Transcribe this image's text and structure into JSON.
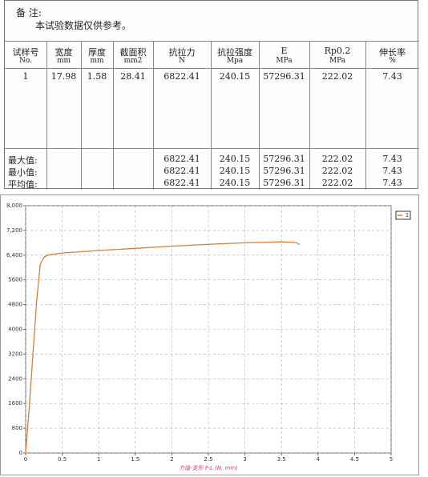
{
  "remark": {
    "label": "备 注:",
    "text": "本试验数据仅供参考。"
  },
  "table": {
    "columns": [
      {
        "name": "试样号",
        "unit": "No."
      },
      {
        "name": "宽度",
        "unit": "mm"
      },
      {
        "name": "厚度",
        "unit": "mm"
      },
      {
        "name": "截面积",
        "unit": "mm2"
      },
      {
        "name": "抗拉力",
        "unit": "N"
      },
      {
        "name": "抗拉强度",
        "unit": "Mpa"
      },
      {
        "name": "E",
        "unit": "MPa"
      },
      {
        "name": "Rp0.2",
        "unit": "MPa"
      },
      {
        "name": "伸长率",
        "unit": "%"
      }
    ],
    "rows": [
      [
        1,
        17.98,
        1.58,
        28.41,
        6822.41,
        240.15,
        57296.31,
        222.02,
        7.43
      ]
    ],
    "stats": [
      {
        "label": "最大值:",
        "values": [
          6822.41,
          240.15,
          57296.31,
          222.02,
          7.43
        ]
      },
      {
        "label": "最小值:",
        "values": [
          6822.41,
          240.15,
          57296.31,
          222.02,
          7.43
        ]
      },
      {
        "label": "平均值:",
        "values": [
          6822.41,
          240.15,
          57296.31,
          222.02,
          7.43
        ]
      }
    ]
  },
  "chart_data": {
    "type": "line",
    "x_label": "力值-变形 F-L  (N, mm)",
    "x": [
      0,
      0.05,
      0.1,
      0.15,
      0.2,
      0.25,
      0.3,
      0.5,
      1,
      1.5,
      2,
      2.5,
      3,
      3.5,
      3.7,
      3.75
    ],
    "series": [
      {
        "name": "1",
        "color": "#d08040",
        "values": [
          0,
          1500,
          3200,
          4900,
          6100,
          6330,
          6400,
          6470,
          6550,
          6620,
          6690,
          6750,
          6800,
          6830,
          6810,
          6740
        ]
      }
    ],
    "xlim": [
      0,
      5
    ],
    "xticks": [
      0,
      0.5,
      1,
      1.5,
      2,
      2.5,
      3,
      3.5,
      4,
      4.5,
      5
    ],
    "ylim": [
      0,
      8000
    ],
    "yticks": [
      0,
      800,
      1600,
      2400,
      3200,
      4000,
      4800,
      5600,
      {
        "value": 6400,
        "label": "6,400"
      },
      {
        "value": 7200,
        "label": "7,200"
      },
      {
        "value": 8000,
        "label": "8,000"
      }
    ],
    "grid": true
  }
}
